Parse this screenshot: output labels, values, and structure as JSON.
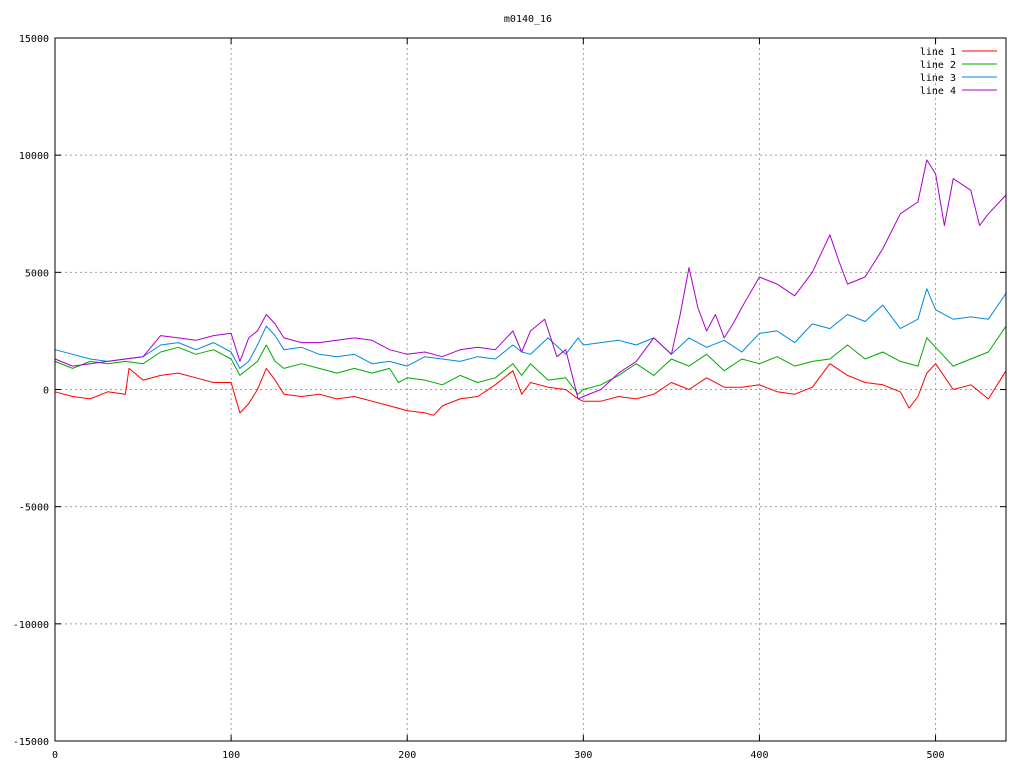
{
  "chart_data": {
    "type": "line",
    "title": "m0140_16",
    "xlabel": "",
    "ylabel": "",
    "xlim": [
      0,
      540
    ],
    "ylim": [
      -15000,
      15000
    ],
    "x_ticks": [
      "0",
      "100",
      "200",
      "300",
      "400",
      "500"
    ],
    "y_ticks": [
      "15000",
      "10000",
      "5000",
      "0",
      "-5000",
      "-10000",
      "-15000"
    ],
    "grid": true,
    "legend_position": "top-right",
    "series": [
      {
        "name": "line 1",
        "color": "#ff0000",
        "x": [
          0,
          10,
          20,
          30,
          40,
          42,
          50,
          60,
          70,
          80,
          90,
          100,
          105,
          110,
          115,
          120,
          125,
          130,
          140,
          150,
          160,
          170,
          180,
          190,
          200,
          210,
          215,
          220,
          230,
          240,
          250,
          260,
          265,
          270,
          280,
          290,
          297,
          300,
          310,
          320,
          330,
          340,
          350,
          360,
          370,
          380,
          390,
          400,
          410,
          420,
          430,
          440,
          450,
          460,
          470,
          480,
          485,
          490,
          495,
          500,
          510,
          520,
          530,
          540
        ],
        "y": [
          -100,
          -300,
          -400,
          -100,
          -200,
          900,
          400,
          600,
          700,
          500,
          300,
          300,
          -1000,
          -600,
          0,
          900,
          400,
          -200,
          -300,
          -200,
          -400,
          -300,
          -500,
          -700,
          -900,
          -1000,
          -1100,
          -700,
          -400,
          -300,
          200,
          800,
          -200,
          300,
          100,
          0,
          -400,
          -500,
          -500,
          -300,
          -400,
          -200,
          300,
          0,
          500,
          100,
          100,
          200,
          -100,
          -200,
          100,
          1100,
          600,
          300,
          200,
          -100,
          -800,
          -300,
          700,
          1100,
          0,
          200,
          -400,
          800
        ]
      },
      {
        "name": "line 2",
        "color": "#00aa00",
        "x": [
          0,
          10,
          20,
          30,
          40,
          50,
          60,
          70,
          80,
          90,
          100,
          105,
          110,
          115,
          120,
          125,
          130,
          140,
          150,
          160,
          170,
          180,
          190,
          195,
          200,
          210,
          220,
          230,
          240,
          250,
          260,
          265,
          270,
          280,
          290,
          297,
          300,
          310,
          320,
          330,
          340,
          350,
          360,
          370,
          380,
          390,
          400,
          410,
          420,
          430,
          440,
          450,
          460,
          470,
          480,
          490,
          495,
          500,
          510,
          520,
          530,
          540
        ],
        "y": [
          1200,
          900,
          1200,
          1100,
          1200,
          1100,
          1600,
          1800,
          1500,
          1700,
          1300,
          600,
          900,
          1200,
          1900,
          1200,
          900,
          1100,
          900,
          700,
          900,
          700,
          900,
          300,
          500,
          400,
          200,
          600,
          300,
          500,
          1100,
          600,
          1100,
          400,
          500,
          -200,
          0,
          200,
          600,
          1100,
          600,
          1300,
          1000,
          1500,
          800,
          1300,
          1100,
          1400,
          1000,
          1200,
          1300,
          1900,
          1300,
          1600,
          1200,
          1000,
          2200,
          1800,
          1000,
          1300,
          1600,
          2700
        ]
      },
      {
        "name": "line 3",
        "color": "#0088dd",
        "x": [
          0,
          10,
          20,
          30,
          40,
          50,
          60,
          70,
          80,
          90,
          100,
          105,
          110,
          115,
          120,
          125,
          130,
          140,
          150,
          160,
          170,
          180,
          190,
          200,
          210,
          220,
          230,
          240,
          250,
          260,
          265,
          270,
          280,
          290,
          297,
          300,
          310,
          320,
          330,
          340,
          350,
          360,
          370,
          380,
          390,
          400,
          410,
          420,
          430,
          440,
          450,
          460,
          470,
          480,
          490,
          495,
          500,
          510,
          520,
          530,
          540
        ],
        "y": [
          1700,
          1500,
          1300,
          1200,
          1300,
          1400,
          1900,
          2000,
          1700,
          2000,
          1600,
          900,
          1200,
          1900,
          2700,
          2300,
          1700,
          1800,
          1500,
          1400,
          1500,
          1100,
          1200,
          1000,
          1400,
          1300,
          1200,
          1400,
          1300,
          1900,
          1600,
          1500,
          2200,
          1500,
          2200,
          1900,
          2000,
          2100,
          1900,
          2200,
          1500,
          2200,
          1800,
          2100,
          1600,
          2400,
          2500,
          2000,
          2800,
          2600,
          3200,
          2900,
          3600,
          2600,
          3000,
          4300,
          3400,
          3000,
          3100,
          3000,
          4100
        ]
      },
      {
        "name": "line 4",
        "color": "#aa00cc",
        "x": [
          0,
          10,
          20,
          30,
          40,
          50,
          60,
          70,
          80,
          90,
          100,
          105,
          110,
          115,
          120,
          125,
          130,
          140,
          150,
          160,
          170,
          180,
          190,
          200,
          210,
          220,
          230,
          240,
          250,
          260,
          265,
          270,
          278,
          285,
          290,
          297,
          300,
          310,
          320,
          330,
          340,
          350,
          355,
          360,
          365,
          370,
          375,
          380,
          385,
          390,
          400,
          410,
          420,
          430,
          440,
          445,
          450,
          460,
          470,
          480,
          490,
          495,
          500,
          505,
          510,
          520,
          525,
          530,
          540
        ],
        "y": [
          1300,
          1000,
          1100,
          1200,
          1300,
          1400,
          2300,
          2200,
          2100,
          2300,
          2400,
          1200,
          2200,
          2500,
          3200,
          2800,
          2200,
          2000,
          2000,
          2100,
          2200,
          2100,
          1700,
          1500,
          1600,
          1400,
          1700,
          1800,
          1700,
          2500,
          1600,
          2500,
          3000,
          1400,
          1700,
          -400,
          -300,
          0,
          700,
          1200,
          2200,
          1500,
          3200,
          5200,
          3500,
          2500,
          3200,
          2200,
          2800,
          3500,
          4800,
          4500,
          4000,
          5000,
          6600,
          5500,
          4500,
          4800,
          6000,
          7500,
          8000,
          9800,
          9200,
          7000,
          9000,
          8500,
          7000,
          7500,
          8300
        ]
      }
    ]
  }
}
